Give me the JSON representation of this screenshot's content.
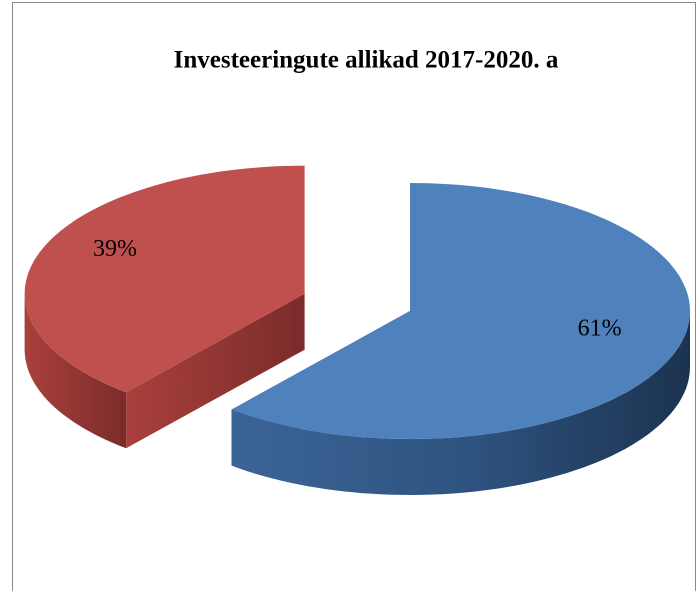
{
  "chart_data": {
    "type": "pie",
    "title": "Investeeringute allikad 2017-2020. a",
    "categories": [
      null,
      null
    ],
    "values": [
      61,
      39
    ],
    "value_labels": [
      "61%",
      "39%"
    ],
    "colors": [
      "#4f81bd",
      "#c0504d"
    ]
  }
}
